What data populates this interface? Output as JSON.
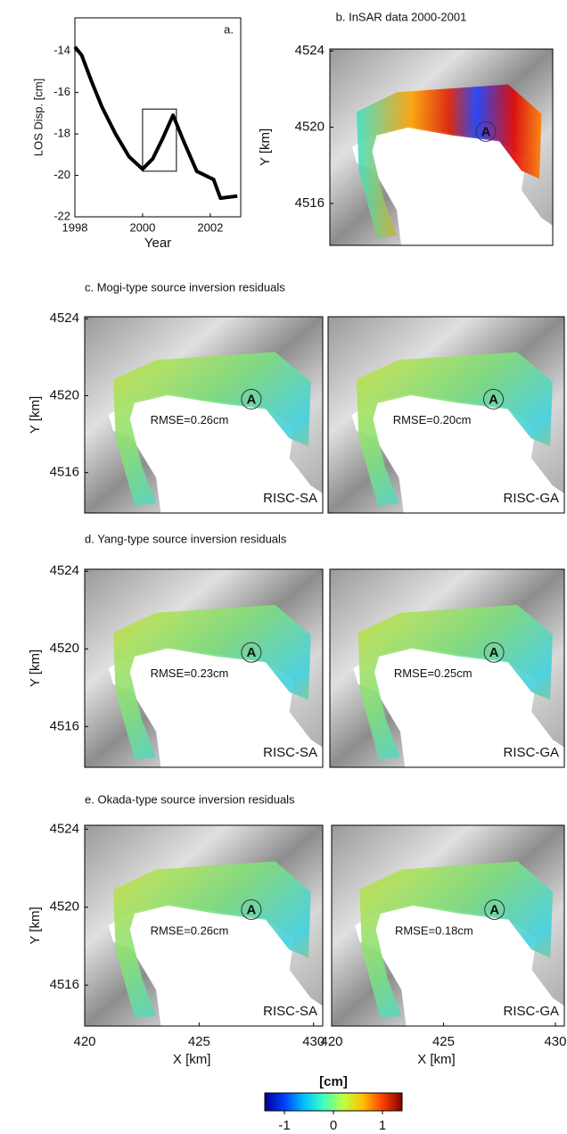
{
  "chart_data": [
    {
      "type": "line",
      "title": "a.",
      "xlabel": "Year",
      "ylabel": "LOS Disp. [cm]",
      "x": [
        1998,
        1998.2,
        1998.5,
        1998.8,
        1999.2,
        1999.6,
        2000,
        2000.3,
        2000.6,
        2000.9,
        2001.2,
        2001.6,
        2002.1,
        2002.3,
        2002.8
      ],
      "values": [
        -13.8,
        -14.2,
        -15.5,
        -16.7,
        -18,
        -19.1,
        -19.7,
        -19.2,
        -18.2,
        -17.1,
        -18.3,
        -19.8,
        -20.2,
        -21.1,
        -21
      ],
      "color": "#000000",
      "xlim": [
        1998,
        2002.9
      ],
      "ylim": [
        -22,
        -12.4
      ],
      "xticks": [
        1998,
        2000,
        2002
      ],
      "yticks": [
        -22,
        -20,
        -18,
        -16,
        -14
      ],
      "highlight_box": {
        "x": [
          2000,
          2001
        ],
        "y": [
          -19.8,
          -16.8
        ]
      }
    },
    {
      "type": "map",
      "title": "b. InSAR data 2000-2001",
      "ylabel": "Y [km]",
      "ylim": [
        4513.8,
        4524.1
      ],
      "yticks": [
        4516,
        4520,
        4524
      ],
      "panels": [
        {
          "marker": "A"
        }
      ]
    },
    {
      "type": "map",
      "title": "c. Mogi-type source inversion residuals",
      "ylabel": "Y [km]",
      "ylim": [
        4513.9,
        4524.1
      ],
      "yticks": [
        4516,
        4520,
        4524
      ],
      "panels": [
        {
          "marker": "A",
          "rmse": "RMSE=0.26cm",
          "method": "RISC-SA"
        },
        {
          "marker": "A",
          "rmse": "RMSE=0.20cm",
          "method": "RISC-GA"
        }
      ]
    },
    {
      "type": "map",
      "title": "d. Yang-type source inversion residuals",
      "ylabel": "Y [km]",
      "ylim": [
        4513.9,
        4524.1
      ],
      "yticks": [
        4516,
        4520,
        4524
      ],
      "panels": [
        {
          "marker": "A",
          "rmse": "RMSE=0.23cm",
          "method": "RISC-SA"
        },
        {
          "marker": "A",
          "rmse": "RMSE=0.25cm",
          "method": "RISC-GA"
        }
      ]
    },
    {
      "type": "map",
      "title": "e. Okada-type source inversion residuals",
      "ylabel": "Y [km]",
      "xlabel": "X [km]",
      "ylim": [
        4513.9,
        4524.2
      ],
      "yticks": [
        4516,
        4520,
        4524
      ],
      "xlim": [
        420,
        430.4
      ],
      "xticks": [
        420,
        425,
        430
      ],
      "panels": [
        {
          "marker": "A",
          "rmse": "RMSE=0.26cm",
          "method": "RISC-SA"
        },
        {
          "marker": "A",
          "rmse": "RMSE=0.18cm",
          "method": "RISC-GA"
        }
      ]
    },
    {
      "type": "colorbar",
      "label": "[cm]",
      "clim": [
        -1.4,
        1.4
      ],
      "ticks": [
        -1,
        0,
        1
      ],
      "colors": [
        "#00008f",
        "#0040ff",
        "#00c0ff",
        "#40ffc0",
        "#c0ff40",
        "#ffc000",
        "#ff4000",
        "#800000"
      ]
    }
  ]
}
